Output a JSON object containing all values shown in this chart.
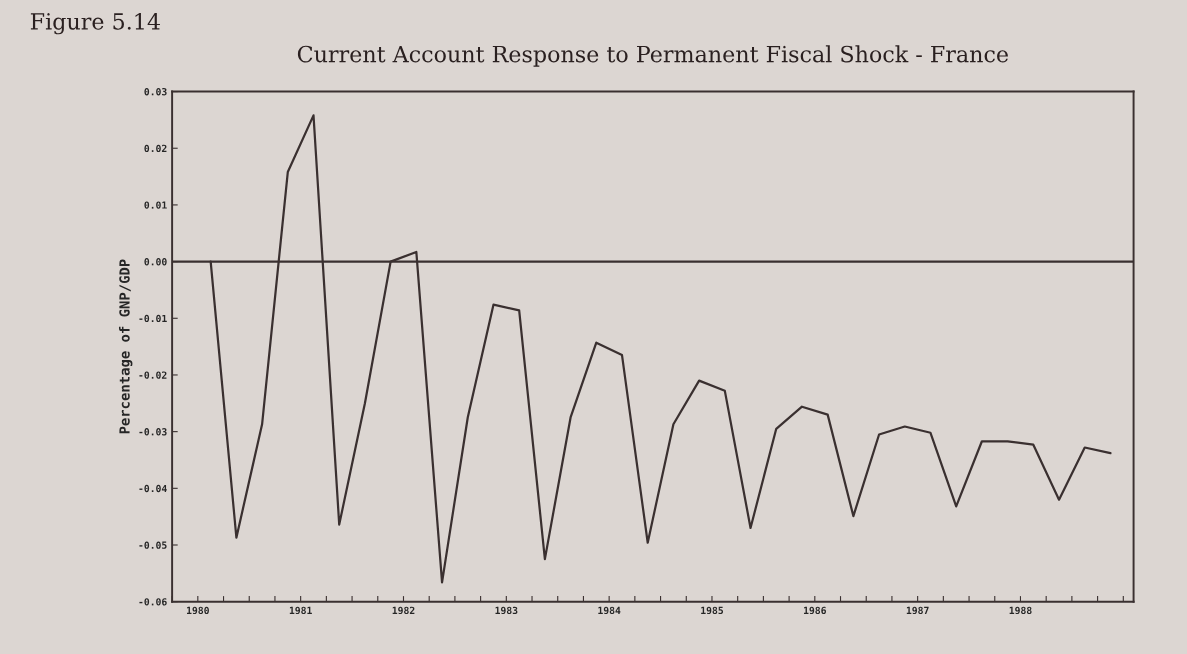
{
  "chart_data": {
    "type": "line",
    "title": "Current Account Response to Permanent Fiscal Shock - France",
    "ylabel": "Percentage of GNP/GDP",
    "annotations": [
      "Figure 5.14"
    ],
    "x": [
      1980.125,
      1980.375,
      1980.625,
      1980.875,
      1981.125,
      1981.375,
      1981.625,
      1981.875,
      1982.125,
      1982.375,
      1982.625,
      1982.875,
      1983.125,
      1983.375,
      1983.625,
      1983.875,
      1984.125,
      1984.375,
      1984.625,
      1984.875,
      1985.125,
      1985.375,
      1985.625,
      1985.875,
      1986.125,
      1986.375,
      1986.625,
      1986.875,
      1987.125,
      1987.375,
      1987.625,
      1987.875,
      1988.125,
      1988.375,
      1988.625,
      1988.875
    ],
    "series": [
      {
        "color": "#3a3030",
        "values": [
          0.0,
          -0.0487,
          -0.0287,
          0.0158,
          0.0258,
          -0.0464,
          -0.025,
          0.0,
          0.0017,
          -0.0566,
          -0.0275,
          -0.0076,
          -0.0086,
          -0.0525,
          -0.0275,
          -0.0143,
          -0.0165,
          -0.0496,
          -0.0287,
          -0.021,
          -0.0228,
          -0.047,
          -0.0295,
          -0.0256,
          -0.027,
          -0.0449,
          -0.0305,
          -0.0291,
          -0.0302,
          -0.0432,
          -0.0317,
          -0.0317,
          -0.0323,
          -0.042,
          -0.0328,
          -0.0338
        ]
      }
    ],
    "xlim": [
      1979.75,
      1989.1
    ],
    "xticks": [
      {
        "value": 1979.75,
        "label": null
      },
      {
        "value": 1980,
        "label": "1980"
      },
      {
        "value": 1980.25,
        "label": null
      },
      {
        "value": 1980.5,
        "label": null
      },
      {
        "value": 1980.75,
        "label": null
      },
      {
        "value": 1981,
        "label": "1981"
      },
      {
        "value": 1981.25,
        "label": null
      },
      {
        "value": 1981.5,
        "label": null
      },
      {
        "value": 1981.75,
        "label": null
      },
      {
        "value": 1982,
        "label": "1982"
      },
      {
        "value": 1982.25,
        "label": null
      },
      {
        "value": 1982.5,
        "label": null
      },
      {
        "value": 1982.75,
        "label": null
      },
      {
        "value": 1983,
        "label": "1983"
      },
      {
        "value": 1983.25,
        "label": null
      },
      {
        "value": 1983.5,
        "label": null
      },
      {
        "value": 1983.75,
        "label": null
      },
      {
        "value": 1984,
        "label": "1984"
      },
      {
        "value": 1984.25,
        "label": null
      },
      {
        "value": 1984.5,
        "label": null
      },
      {
        "value": 1984.75,
        "label": null
      },
      {
        "value": 1985,
        "label": "1985"
      },
      {
        "value": 1985.25,
        "label": null
      },
      {
        "value": 1985.5,
        "label": null
      },
      {
        "value": 1985.75,
        "label": null
      },
      {
        "value": 1986,
        "label": "1986"
      },
      {
        "value": 1986.25,
        "label": null
      },
      {
        "value": 1986.5,
        "label": null
      },
      {
        "value": 1986.75,
        "label": null
      },
      {
        "value": 1987,
        "label": "1987"
      },
      {
        "value": 1987.25,
        "label": null
      },
      {
        "value": 1987.5,
        "label": null
      },
      {
        "value": 1987.75,
        "label": null
      },
      {
        "value": 1988,
        "label": "1988"
      },
      {
        "value": 1988.25,
        "label": null
      },
      {
        "value": 1988.5,
        "label": null
      },
      {
        "value": 1988.75,
        "label": null
      },
      {
        "value": 1989,
        "label": null
      }
    ],
    "ylim": [
      -0.06,
      0.03
    ],
    "yticks": [
      {
        "value": -0.06,
        "label": "-0.06"
      },
      {
        "value": -0.05,
        "label": "-0.05"
      },
      {
        "value": -0.04,
        "label": "-0.04"
      },
      {
        "value": -0.03,
        "label": "-0.03"
      },
      {
        "value": -0.02,
        "label": "-0.02"
      },
      {
        "value": -0.01,
        "label": "-0.01"
      },
      {
        "value": 0,
        "label": "0.00"
      },
      {
        "value": 0.01,
        "label": "0.01"
      },
      {
        "value": 0.02,
        "label": "0.02"
      },
      {
        "value": 0.03,
        "label": "0.03"
      }
    ],
    "ref_lines": [
      {
        "axis": "y",
        "value": 0,
        "color": "#3a3030",
        "line_style": "solid"
      }
    ],
    "grid": false,
    "marker": "none",
    "line_style": "solid"
  }
}
